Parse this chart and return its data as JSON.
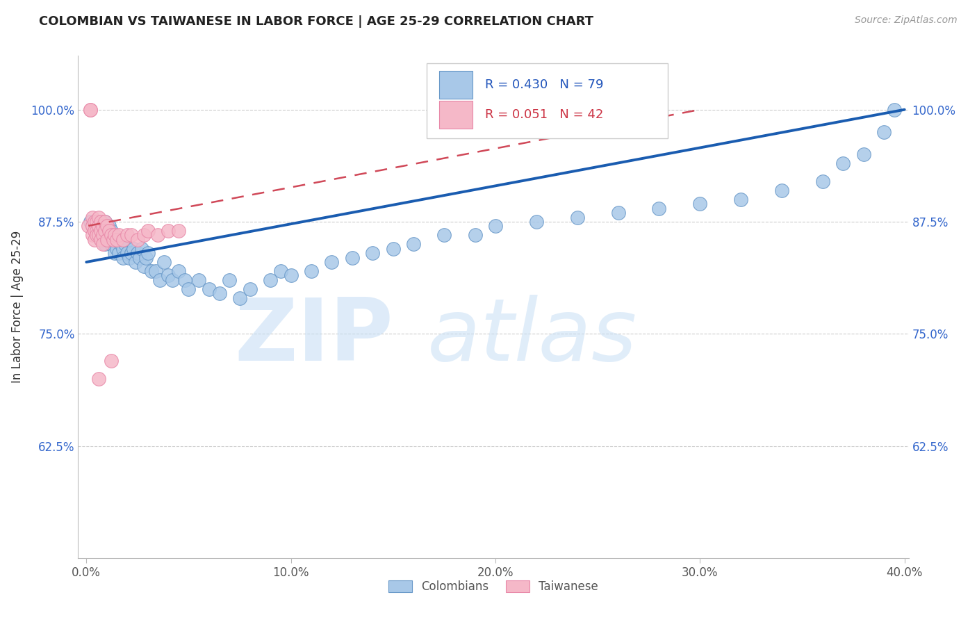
{
  "title": "COLOMBIAN VS TAIWANESE IN LABOR FORCE | AGE 25-29 CORRELATION CHART",
  "source": "Source: ZipAtlas.com",
  "ylabel": "In Labor Force | Age 25-29",
  "xlim": [
    -0.004,
    0.402
  ],
  "ylim": [
    0.5,
    1.06
  ],
  "xticks": [
    0.0,
    0.1,
    0.2,
    0.3,
    0.4
  ],
  "xtick_labels": [
    "0.0%",
    "10.0%",
    "20.0%",
    "30.0%",
    "40.0%"
  ],
  "yticks": [
    0.625,
    0.75,
    0.875,
    1.0
  ],
  "ytick_labels": [
    "62.5%",
    "75.0%",
    "87.5%",
    "100.0%"
  ],
  "blue_R": 0.43,
  "blue_N": 79,
  "pink_R": 0.051,
  "pink_N": 42,
  "blue_color": "#a8c8e8",
  "pink_color": "#f5b8c8",
  "blue_edge_color": "#6898c8",
  "pink_edge_color": "#e888a8",
  "blue_line_color": "#1a5cb0",
  "pink_line_color": "#d04858",
  "legend_blue_label": "Colombians",
  "legend_pink_label": "Taiwanese",
  "blue_x": [
    0.002,
    0.003,
    0.004,
    0.005,
    0.005,
    0.006,
    0.006,
    0.007,
    0.007,
    0.008,
    0.008,
    0.009,
    0.009,
    0.01,
    0.01,
    0.011,
    0.011,
    0.012,
    0.012,
    0.013,
    0.013,
    0.014,
    0.015,
    0.015,
    0.016,
    0.017,
    0.018,
    0.018,
    0.019,
    0.02,
    0.021,
    0.022,
    0.023,
    0.024,
    0.025,
    0.026,
    0.027,
    0.028,
    0.029,
    0.03,
    0.032,
    0.034,
    0.036,
    0.038,
    0.04,
    0.042,
    0.045,
    0.048,
    0.05,
    0.055,
    0.06,
    0.065,
    0.07,
    0.075,
    0.08,
    0.09,
    0.095,
    0.1,
    0.11,
    0.12,
    0.13,
    0.14,
    0.15,
    0.16,
    0.175,
    0.19,
    0.2,
    0.22,
    0.24,
    0.26,
    0.28,
    0.3,
    0.32,
    0.34,
    0.36,
    0.37,
    0.38,
    0.39,
    0.395
  ],
  "blue_y": [
    0.875,
    0.87,
    0.865,
    0.87,
    0.86,
    0.875,
    0.86,
    0.865,
    0.855,
    0.87,
    0.855,
    0.875,
    0.85,
    0.865,
    0.86,
    0.87,
    0.855,
    0.865,
    0.85,
    0.86,
    0.855,
    0.84,
    0.855,
    0.845,
    0.84,
    0.85,
    0.845,
    0.835,
    0.85,
    0.84,
    0.835,
    0.84,
    0.845,
    0.83,
    0.84,
    0.835,
    0.845,
    0.825,
    0.835,
    0.84,
    0.82,
    0.82,
    0.81,
    0.83,
    0.815,
    0.81,
    0.82,
    0.81,
    0.8,
    0.81,
    0.8,
    0.795,
    0.81,
    0.79,
    0.8,
    0.81,
    0.82,
    0.815,
    0.82,
    0.83,
    0.835,
    0.84,
    0.845,
    0.85,
    0.86,
    0.86,
    0.87,
    0.875,
    0.88,
    0.885,
    0.89,
    0.895,
    0.9,
    0.91,
    0.92,
    0.94,
    0.95,
    0.975,
    1.0
  ],
  "pink_x": [
    0.001,
    0.002,
    0.002,
    0.003,
    0.003,
    0.003,
    0.004,
    0.004,
    0.004,
    0.005,
    0.005,
    0.005,
    0.006,
    0.006,
    0.006,
    0.007,
    0.007,
    0.007,
    0.008,
    0.008,
    0.008,
    0.009,
    0.009,
    0.01,
    0.01,
    0.011,
    0.012,
    0.013,
    0.014,
    0.015,
    0.016,
    0.018,
    0.02,
    0.022,
    0.025,
    0.028,
    0.03,
    0.035,
    0.04,
    0.045,
    0.006,
    0.012
  ],
  "pink_y": [
    0.87,
    1.0,
    1.0,
    0.88,
    0.87,
    0.86,
    0.875,
    0.865,
    0.855,
    0.875,
    0.865,
    0.86,
    0.88,
    0.87,
    0.86,
    0.875,
    0.865,
    0.855,
    0.87,
    0.86,
    0.85,
    0.875,
    0.865,
    0.87,
    0.855,
    0.865,
    0.86,
    0.855,
    0.86,
    0.855,
    0.86,
    0.855,
    0.86,
    0.86,
    0.855,
    0.86,
    0.865,
    0.86,
    0.865,
    0.865,
    0.7,
    0.72
  ],
  "watermark_zip_color": "#c8dff0",
  "watermark_atlas_color": "#c8dff0",
  "bg_color": "#ffffff"
}
